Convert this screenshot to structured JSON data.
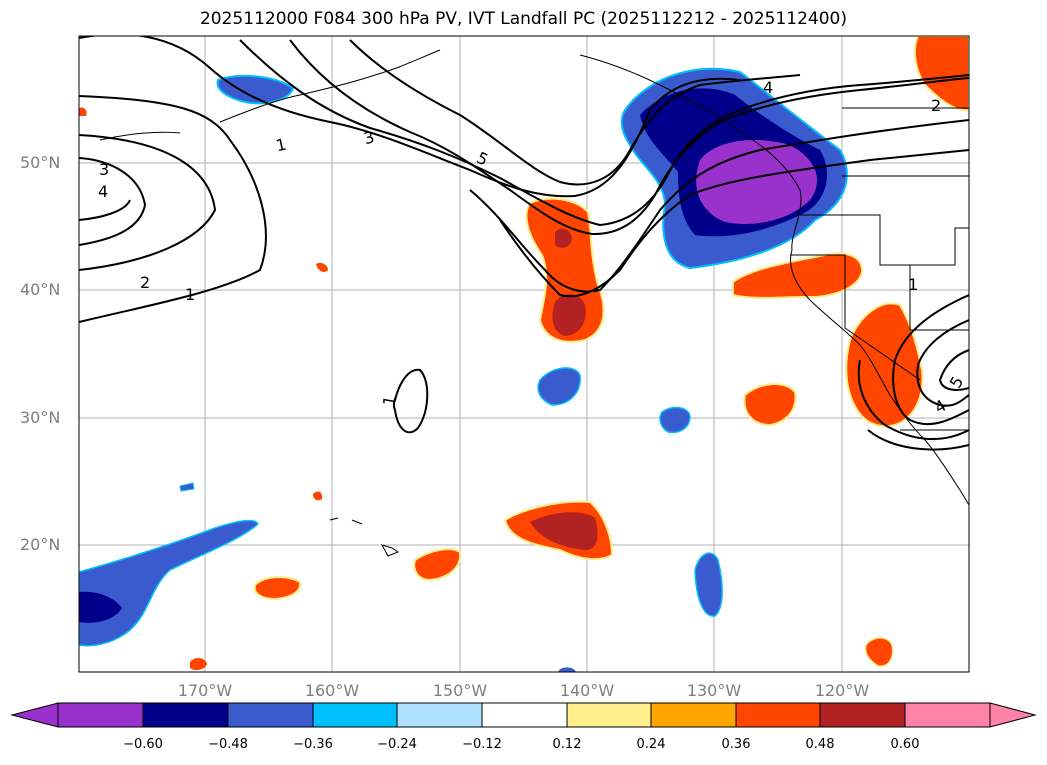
{
  "title": "2025112000 F084 300 hPa PV, IVT Landfall PC (2025112212 - 2025112400)",
  "lat_labels": [
    "50°N",
    "40°N",
    "30°N",
    "20°N"
  ],
  "lon_labels": [
    "170°W",
    "160°W",
    "150°W",
    "140°W",
    "130°W",
    "120°W"
  ],
  "contour_labels": [
    "1",
    "3",
    "5",
    "3",
    "4",
    "2",
    "1",
    "4",
    "2",
    "1",
    "5",
    "4",
    "1"
  ],
  "colorbar": {
    "ticks": [
      "−0.60",
      "−0.48",
      "−0.36",
      "−0.24",
      "−0.12",
      "0.12",
      "0.24",
      "0.36",
      "0.48",
      "0.60"
    ],
    "colors": [
      "#9932cc",
      "#00008b",
      "#3a5bcd",
      "#00bfff",
      "#b0e2ff",
      "#ffffff",
      "#ffec8b",
      "#ffa500",
      "#ff4500",
      "#b22222",
      "#ff82ab"
    ]
  }
}
